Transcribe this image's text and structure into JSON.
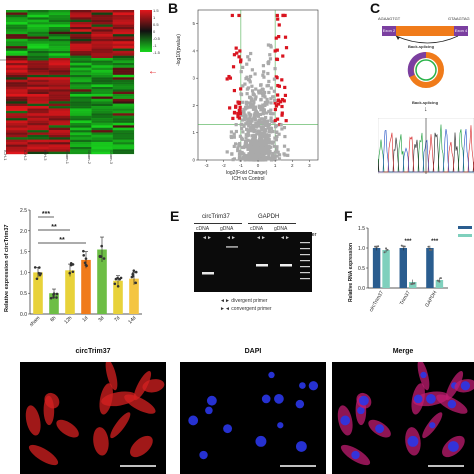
{
  "panels": {
    "a": "",
    "b": "B",
    "c": "C",
    "d": "",
    "e": "E",
    "f": "F",
    "g": ""
  },
  "heatmap": {
    "samples": [
      "ICH-1",
      "ICH-2",
      "ICH-3",
      "Sham-1",
      "Sham-2",
      "Sham-3"
    ],
    "legend_ticks": [
      "1.5",
      "1",
      "0.5",
      "0",
      "-0.5",
      "-1",
      "-1.5"
    ],
    "colors": {
      "high": "#e2171c",
      "low": "#19d61e",
      "mid": "#111111"
    }
  },
  "volcano": {
    "ylabel": "-log10(pvalue)",
    "xlabel": "log2(Fold Change)",
    "xlabel2": "ICH vs Control",
    "xticks": [
      "-3",
      "-2",
      "-1",
      "0",
      "1",
      "2",
      "3"
    ],
    "yticks": [
      "0",
      "1",
      "2",
      "3",
      "4",
      "5"
    ],
    "colors": {
      "sig": "#d9141f",
      "ns": "#aaaaaa",
      "threshold": "#4caf50"
    }
  },
  "schematic": {
    "left_site": "AGAAGTGT",
    "right_site": "GTAAGTAG",
    "exon_left": "Exon 2",
    "exon_right": "Exon 4",
    "arrow_label": "Back-splicing",
    "circ_label": "circTrim37",
    "seq_label": "Back-splicing",
    "colors": {
      "exon": "#7b3fa0",
      "body": "#f07b1a",
      "ring": "#2bb34a"
    }
  },
  "chart_data": [
    {
      "type": "bar",
      "title": "",
      "ylabel": "Relative expression of circTrim37",
      "xlabel": "",
      "categories": [
        "sham",
        "6h",
        "12h",
        "1d",
        "3d",
        "7d",
        "14d"
      ],
      "values": [
        1.0,
        0.5,
        1.05,
        1.3,
        1.55,
        0.8,
        0.85
      ],
      "errors": [
        0.12,
        0.1,
        0.15,
        0.2,
        0.3,
        0.12,
        0.15
      ],
      "bar_colors": [
        "#e8d23a",
        "#6dbe45",
        "#e8d23a",
        "#f07b1a",
        "#6dbe45",
        "#e8d23a",
        "#f4c542"
      ],
      "ylim": [
        0,
        2.5
      ],
      "yticks": [
        "0.0",
        "0.5",
        "1.0",
        "1.5",
        "2.0",
        "2.5"
      ],
      "significance": [
        {
          "from": 0,
          "to": 1,
          "label": "***"
        },
        {
          "from": 0,
          "to": 2,
          "label": "**"
        },
        {
          "from": 0,
          "to": 3,
          "label": "**"
        }
      ]
    },
    {
      "type": "bar",
      "title": "",
      "ylabel": "Relative RNA expression",
      "xlabel": "",
      "categories": [
        "circTrim37",
        "Trim37",
        "GAPDH"
      ],
      "series": [
        {
          "name": "",
          "values": [
            1.0,
            1.0,
            1.0
          ],
          "color": "#2a5d8f"
        },
        {
          "name": "",
          "values": [
            0.95,
            0.15,
            0.2
          ],
          "color": "#7fd0bd"
        }
      ],
      "ylim": [
        0,
        1.5
      ],
      "yticks": [
        "0.0",
        "0.5",
        "1.0",
        "1.5"
      ],
      "significance": [
        {
          "category": 1,
          "label": "***"
        },
        {
          "category": 2,
          "label": "***"
        }
      ]
    }
  ],
  "gel": {
    "group1": "circTrim37",
    "group2": "GAPDH",
    "lanes": [
      "cDNA",
      "gDNA",
      "cDNA",
      "gDNA"
    ],
    "marker": "Marker",
    "legend": [
      {
        "symbol": "◄►",
        "label": "divergent primer"
      },
      {
        "symbol": "►◄",
        "label": "convergent primer"
      }
    ]
  },
  "micrographs": [
    {
      "title": "circTrim37",
      "color": "#ff3030"
    },
    {
      "title": "DAPI",
      "color": "#3040ff"
    },
    {
      "title": "Merge",
      "color": "#ff30c0"
    }
  ]
}
